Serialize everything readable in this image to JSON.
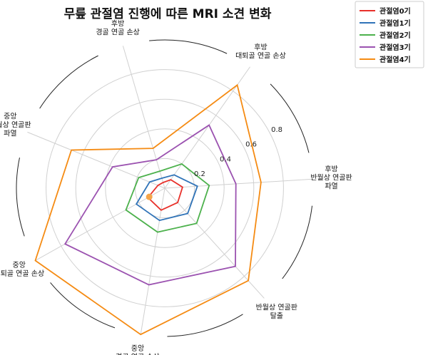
{
  "chart_data": {
    "type": "radar",
    "title": "무릎 관절염 진행에 따른 MRI 소견 변화",
    "axes": [
      [
        "후방",
        "반월상 연골판",
        "파열"
      ],
      [
        "후방",
        "대퇴골 연골 손상"
      ],
      [
        "후방",
        "경골 연골 손상"
      ],
      [
        "중앙",
        "반월상 연골판",
        "파열"
      ],
      [
        "중앙",
        "대퇴골 연골 손상"
      ],
      [
        "중앙",
        "경골 연골 손상"
      ],
      [
        "반월상 연골판",
        "탈출"
      ]
    ],
    "rlim": [
      0,
      1.0
    ],
    "rticks": [
      0.2,
      0.4,
      0.6,
      0.8
    ],
    "rtick_labels": [
      "0.2",
      "0.4",
      "0.6",
      "0.8"
    ],
    "grid": true,
    "legend": "top-right",
    "series": [
      {
        "name": "관절염0기",
        "color": "#e8302a",
        "values": [
          0.12,
          0.07,
          0.04,
          0.05,
          0.13,
          0.15,
          0.13
        ]
      },
      {
        "name": "관절염1기",
        "color": "#2f73b8",
        "values": [
          0.22,
          0.11,
          0.07,
          0.11,
          0.22,
          0.22,
          0.23
        ]
      },
      {
        "name": "관절염2기",
        "color": "#4cb14c",
        "values": [
          0.3,
          0.2,
          0.12,
          0.19,
          0.3,
          0.3,
          0.32
        ]
      },
      {
        "name": "관절염3기",
        "color": "#9b52b0",
        "values": [
          0.48,
          0.52,
          0.2,
          0.38,
          0.77,
          0.66,
          0.71
        ]
      },
      {
        "name": "관절염4기",
        "color": "#f58b13",
        "values": [
          0.65,
          0.85,
          0.28,
          0.68,
          1.0,
          1.0,
          0.84
        ]
      }
    ],
    "highlight_point": {
      "color": "#f5a54a"
    }
  }
}
